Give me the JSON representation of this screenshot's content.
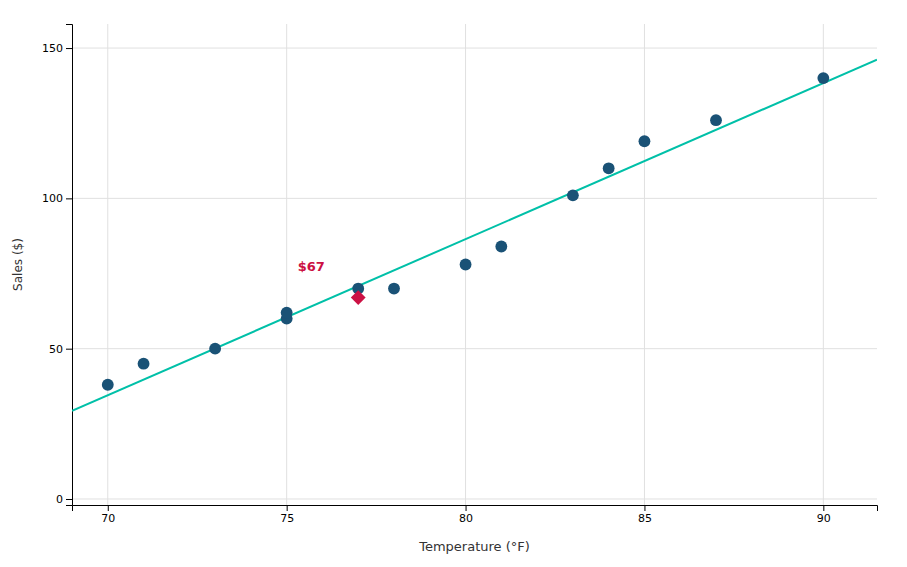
{
  "chart_data": {
    "type": "scatter",
    "x_label": "Temperature (°F)",
    "y_label": "Sales ($)",
    "xlim": [
      69.0,
      91.5
    ],
    "ylim": [
      -2,
      158
    ],
    "xticks": [
      70,
      75,
      80,
      85,
      90
    ],
    "yticks": [
      0,
      50,
      100,
      150
    ],
    "grid": true,
    "series": [
      {
        "type": "line",
        "color": "#00c0a8",
        "x": [
          69.0,
          91.5
        ],
        "values": [
          29.3215,
          146.1483
        ]
      },
      {
        "type": "scatter",
        "color": "#1a5276",
        "marker": "circle",
        "x": [
          70,
          71,
          73,
          75,
          75,
          77,
          78,
          80,
          81,
          83,
          84,
          85,
          87,
          90
        ],
        "values": [
          38,
          45,
          50,
          60,
          62,
          70,
          70,
          78,
          84,
          101,
          110,
          119,
          126,
          140
        ]
      },
      {
        "type": "scatter",
        "color": "#cc1144",
        "marker": "diamond",
        "x": [
          77
        ],
        "values": [
          67
        ]
      }
    ],
    "annotations": [
      {
        "text": "$67",
        "color": "#cc1144"
      }
    ]
  }
}
